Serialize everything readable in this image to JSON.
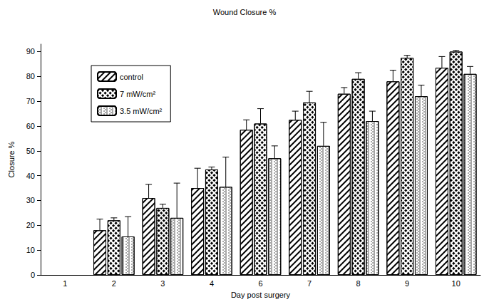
{
  "chart_data": {
    "type": "bar",
    "title": "Wound Closure %",
    "x_label": "Day post surgery",
    "y_label": "Closure %",
    "categories": [
      "1",
      "2",
      "3",
      "4",
      "6",
      "7",
      "8",
      "9",
      "10"
    ],
    "series": [
      {
        "name": "control",
        "color": "#000000",
        "marker": "hatch",
        "values": [
          null,
          18,
          31,
          35,
          58.5,
          62.5,
          73,
          78,
          83.5
        ],
        "errors": [
          null,
          4.5,
          5.5,
          8,
          4,
          3.5,
          2.5,
          4.5,
          4.5
        ]
      },
      {
        "name": "7 mW/cm²",
        "color": "#000000",
        "marker": "crosshatch",
        "values": [
          null,
          22,
          27,
          42.5,
          61,
          69.5,
          79,
          87.5,
          90
        ],
        "errors": [
          null,
          1,
          1.5,
          1,
          6,
          4.5,
          2.5,
          1,
          0.5
        ]
      },
      {
        "name": "3.5 mW/cm²",
        "color": "#000000",
        "marker": "dots",
        "values": [
          null,
          15.5,
          23,
          35.5,
          47,
          52,
          62,
          72,
          81
        ],
        "errors": [
          null,
          8,
          14,
          12,
          5,
          9.5,
          4,
          4.5,
          3
        ]
      }
    ],
    "ylim": [
      0,
      93
    ],
    "yticks": [
      0,
      10,
      20,
      30,
      40,
      50,
      60,
      70,
      80,
      90
    ],
    "grid": false,
    "legend": "upper left"
  }
}
